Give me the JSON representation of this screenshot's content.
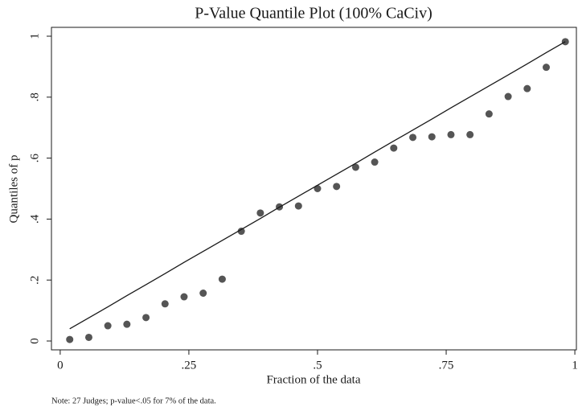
{
  "chart_data": {
    "type": "scatter",
    "title": "P-Value Quantile Plot (100% CaCiv)",
    "x_label": "Fraction of the data",
    "y_label": "Quantiles of p",
    "note": "Note: 27 Judges; p-value<.05 for 7% of the data.",
    "x": [
      0.0185,
      0.0556,
      0.0926,
      0.1296,
      0.1667,
      0.2037,
      0.2407,
      0.2778,
      0.3148,
      0.3519,
      0.3889,
      0.4259,
      0.463,
      0.5,
      0.537,
      0.5741,
      0.6111,
      0.6481,
      0.6852,
      0.7222,
      0.7593,
      0.7963,
      0.8333,
      0.8704,
      0.9074,
      0.9444,
      0.9815
    ],
    "series": [
      {
        "color": "#555555",
        "mark": "point",
        "values": [
          0.005,
          0.012,
          0.05,
          0.055,
          0.077,
          0.122,
          0.145,
          0.157,
          0.203,
          0.36,
          0.42,
          0.44,
          0.443,
          0.5,
          0.507,
          0.57,
          0.587,
          0.633,
          0.668,
          0.67,
          0.677,
          0.677,
          0.745,
          0.802,
          0.828,
          0.898,
          0.982
        ]
      },
      {
        "color": "#1a1a1a",
        "mark": "line",
        "values": [
          0.04,
          0.076,
          0.112,
          0.149,
          0.185,
          0.221,
          0.258,
          0.294,
          0.33,
          0.366,
          0.402,
          0.439,
          0.475,
          0.511,
          0.547,
          0.583,
          0.62,
          0.656,
          0.692,
          0.728,
          0.765,
          0.801,
          0.837,
          0.873,
          0.909,
          0.946,
          0.982
        ]
      }
    ],
    "xlim": [
      -0.017,
      1.003
    ],
    "ylim": [
      -0.029,
      1.029
    ],
    "xticks": [
      0,
      {
        "value": 0.25,
        "label": ".25"
      },
      {
        "value": 0.5,
        "label": ".5"
      },
      {
        "value": 0.75,
        "label": ".75"
      },
      1
    ],
    "yticks": [
      0,
      {
        "value": 0.2,
        "label": ".2"
      },
      {
        "value": 0.4,
        "label": ".4"
      },
      {
        "value": 0.6,
        "label": ".6"
      },
      {
        "value": 0.8,
        "label": ".8"
      },
      1
    ],
    "grid": false
  }
}
